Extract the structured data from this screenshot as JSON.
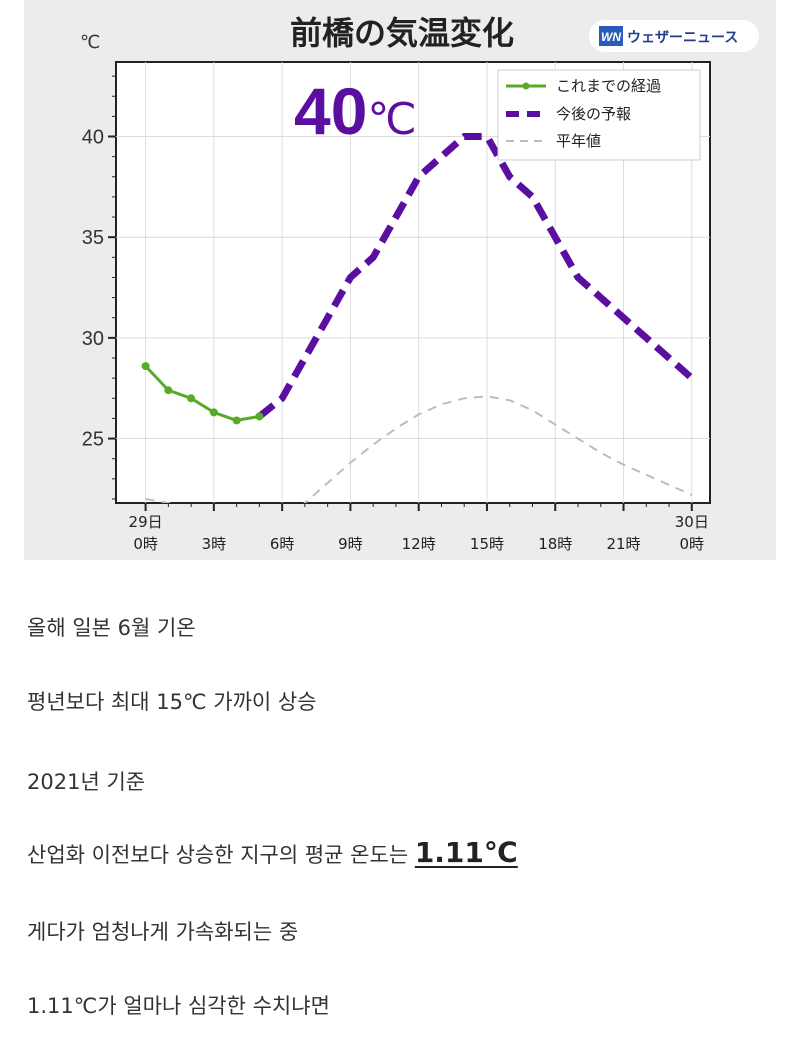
{
  "chart_data": {
    "type": "line",
    "title": "前橋の気温変化",
    "unit_label": "℃",
    "highlight": {
      "value": "40",
      "unit": "℃"
    },
    "brand": {
      "logo": "WN",
      "name": "ウェザーニュース"
    },
    "ylim": [
      21.8,
      43.7
    ],
    "yticks": [
      "25",
      "30",
      "35",
      "40"
    ],
    "xlim": [
      -1.3,
      24.8
    ],
    "xticks": [
      {
        "line1": "29日",
        "line2": "0時",
        "x": 0
      },
      {
        "line1": "",
        "line2": "3時",
        "x": 3
      },
      {
        "line1": "",
        "line2": "6時",
        "x": 6
      },
      {
        "line1": "",
        "line2": "9時",
        "x": 9
      },
      {
        "line1": "",
        "line2": "12時",
        "x": 12
      },
      {
        "line1": "",
        "line2": "15時",
        "x": 15
      },
      {
        "line1": "",
        "line2": "18時",
        "x": 18
      },
      {
        "line1": "",
        "line2": "21時",
        "x": 21
      },
      {
        "line1": "30日",
        "line2": "0時",
        "x": 24
      }
    ],
    "grid": true,
    "legend_position": "top-right",
    "series": [
      {
        "name": "これまでの経過",
        "style": "solid-markers",
        "color": "#5aaa2a",
        "x": [
          0,
          1,
          2,
          3,
          4,
          5
        ],
        "y": [
          28.6,
          27.4,
          27.0,
          26.3,
          25.9,
          26.1
        ]
      },
      {
        "name": "今後の予報",
        "style": "dashed-bold",
        "color": "#5b0fa0",
        "x": [
          5,
          6,
          7,
          8,
          9,
          10,
          11,
          12,
          13,
          14,
          15,
          16,
          17,
          18,
          19,
          20,
          21,
          22,
          23,
          24
        ],
        "y": [
          26.1,
          27.0,
          29.0,
          31.0,
          33.0,
          34.0,
          36.0,
          38.0,
          39.0,
          40.0,
          40.0,
          38.0,
          37.0,
          35.0,
          33.0,
          32.0,
          31.0,
          30.0,
          29.0,
          28.0
        ]
      },
      {
        "name": "平年値",
        "style": "dashed-thin",
        "color": "#bdbdbd",
        "x": [
          0,
          1,
          2,
          3,
          4,
          5,
          6,
          7,
          8,
          9,
          10,
          11,
          12,
          13,
          14,
          15,
          16,
          17,
          18,
          19,
          20,
          21,
          22,
          23,
          24
        ],
        "y": [
          22.0,
          21.8,
          21.5,
          21.3,
          21.1,
          21.0,
          21.1,
          21.8,
          22.8,
          23.8,
          24.7,
          25.5,
          26.2,
          26.7,
          27.0,
          27.1,
          26.9,
          26.4,
          25.7,
          25.0,
          24.3,
          23.7,
          23.2,
          22.7,
          22.2
        ]
      }
    ]
  },
  "captions": [
    {
      "text": "올해 일본 6월 기온"
    },
    {
      "text": "평년보다 최대 15℃ 가까이 상승"
    },
    {
      "text": "2021년 기준"
    },
    {
      "text": "산업화 이전보다 상승한 지구의 평균 온도는 ",
      "strong": "1.11℃"
    },
    {
      "text": "게다가 엄청나게 가속화되는 중"
    },
    {
      "text": "1.11℃가 얼마나 심각한 수치냐면"
    }
  ]
}
